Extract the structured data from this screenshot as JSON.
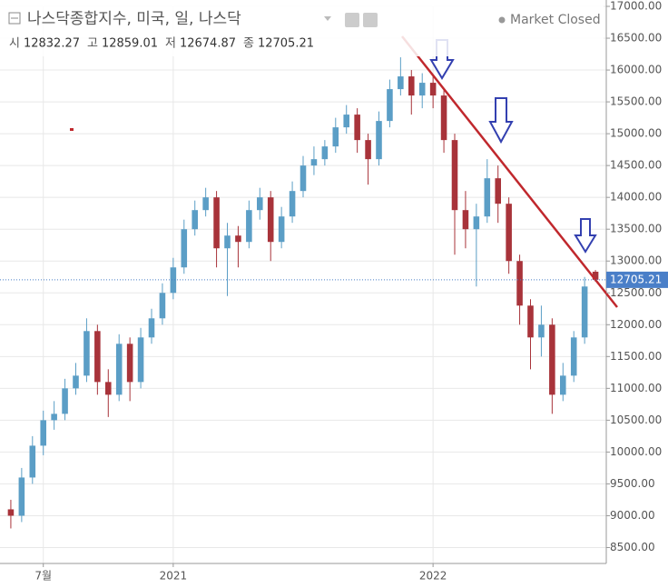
{
  "header": {
    "title": "나스닥종합지수, 미국, 일, 나스닥",
    "status": "Market Closed"
  },
  "chart_data": {
    "type": "candlestick",
    "ohlc_labels": [
      "시",
      "고",
      "저",
      "종"
    ],
    "x": [
      -7.5,
      -7,
      -6.5,
      -6,
      -5.5,
      -5,
      -4.5,
      -4,
      -3.5,
      -3,
      -2.5,
      -2,
      -1.5,
      -1,
      -0.5,
      0,
      0.5,
      1,
      1.5,
      2,
      2.5,
      3,
      3.5,
      4,
      4.5,
      5,
      5.5,
      6,
      6.5,
      7,
      7.5,
      8,
      8.5,
      9,
      9.5,
      10,
      10.5,
      11,
      11.5,
      12,
      12.5,
      13,
      13.5,
      14,
      14.5,
      15,
      15.5,
      16,
      16.5,
      17,
      17.5,
      18,
      18.5,
      19,
      19.5
    ],
    "open": [
      9100,
      9000,
      9600,
      10100,
      10500,
      10600,
      11000,
      11200,
      11900,
      11100,
      10900,
      11700,
      11100,
      11800,
      12100,
      12500,
      12900,
      13500,
      13800,
      14000,
      13200,
      13400,
      13300,
      13800,
      14000,
      13300,
      13700,
      14100,
      14500,
      14600,
      14800,
      15100,
      15300,
      14900,
      14600,
      15200,
      15700,
      15900,
      15600,
      15800,
      15600,
      14900,
      13800,
      13500,
      13700,
      14300,
      13900,
      13000,
      12300,
      11800,
      12000,
      10900,
      11200,
      11800,
      12832.27
    ],
    "high": [
      9250,
      9750,
      10250,
      10650,
      10800,
      11150,
      11400,
      12100,
      12000,
      11300,
      11850,
      11800,
      11950,
      12250,
      12650,
      13050,
      13650,
      13950,
      14150,
      14100,
      13600,
      13550,
      13950,
      14150,
      14100,
      13850,
      14250,
      14650,
      14800,
      14900,
      15250,
      15450,
      15400,
      15000,
      15350,
      15850,
      16200,
      16000,
      15950,
      15900,
      15700,
      15000,
      14100,
      13900,
      14600,
      14500,
      14000,
      13100,
      12400,
      12300,
      12100,
      11400,
      11900,
      12750,
      12859.01
    ],
    "low": [
      8800,
      8900,
      9500,
      9950,
      10350,
      10500,
      10900,
      11100,
      10900,
      10550,
      10800,
      10800,
      11000,
      11700,
      12000,
      12400,
      12800,
      13400,
      13700,
      12900,
      12450,
      12900,
      13200,
      13650,
      13000,
      13200,
      13600,
      14000,
      14350,
      14500,
      14700,
      15000,
      14700,
      14200,
      14500,
      15100,
      15600,
      15300,
      15400,
      15400,
      14700,
      13100,
      13200,
      12600,
      13600,
      13600,
      12800,
      12000,
      11300,
      11500,
      10600,
      10800,
      11100,
      11700,
      12674.87
    ],
    "close": [
      9000,
      9600,
      10100,
      10500,
      10600,
      11000,
      11200,
      11900,
      11100,
      10900,
      11700,
      11100,
      11800,
      12100,
      12500,
      12900,
      13500,
      13800,
      14000,
      13200,
      13400,
      13300,
      13800,
      14000,
      13300,
      13700,
      14100,
      14500,
      14600,
      14800,
      15100,
      15300,
      14900,
      14600,
      15200,
      15700,
      15900,
      15600,
      15800,
      15600,
      14900,
      13800,
      13500,
      13700,
      14300,
      13900,
      13000,
      12300,
      11800,
      12000,
      10900,
      11200,
      11800,
      12600,
      12705.21
    ],
    "up_color": "#5b9ec6",
    "down_color": "#a8333a",
    "xlim": [
      -8,
      20
    ],
    "xticks": [
      {
        "value": -6,
        "label": "7월"
      },
      {
        "value": 0,
        "label": "2021"
      },
      {
        "value": 12,
        "label": "2022"
      }
    ],
    "ylim": [
      8250,
      17000
    ],
    "yticks": [
      {
        "value": 8500,
        "label": "8500.00"
      },
      {
        "value": 9000,
        "label": "9000.00"
      },
      {
        "value": 9500,
        "label": "9500.00"
      },
      {
        "value": 10000,
        "label": "10000.00"
      },
      {
        "value": 10500,
        "label": "10500.00"
      },
      {
        "value": 11000,
        "label": "11000.00"
      },
      {
        "value": 11500,
        "label": "11500.00"
      },
      {
        "value": 12000,
        "label": "12000.00"
      },
      {
        "value": 12500,
        "label": "12500.00"
      },
      {
        "value": 13000,
        "label": "13000.00"
      },
      {
        "value": 13500,
        "label": "13500.00"
      },
      {
        "value": 14000,
        "label": "14000.00"
      },
      {
        "value": 14500,
        "label": "14500.00"
      },
      {
        "value": 15000,
        "label": "15000.00"
      },
      {
        "value": 15500,
        "label": "15500.00"
      },
      {
        "value": 16000,
        "label": "16000.00"
      },
      {
        "value": 16500,
        "label": "16500.00"
      },
      {
        "value": 17000,
        "label": "17000.00"
      }
    ]
  }
}
